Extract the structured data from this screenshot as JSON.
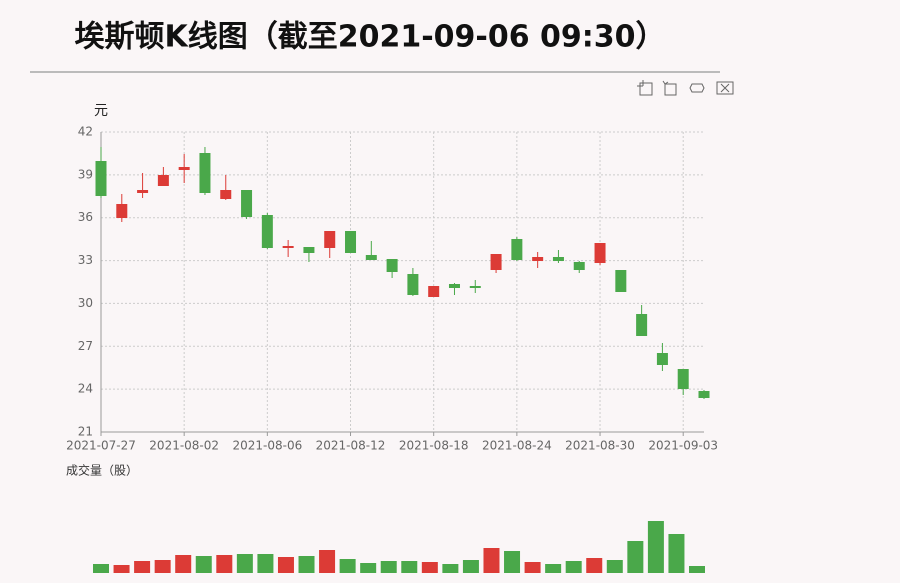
{
  "chart_data": {
    "type": "candlestick",
    "title": "埃斯顿K线图（截至2021-09-06 09:30）",
    "y_label": "元",
    "volume_label": "成交量（股）",
    "categories": [
      "2021-07-27",
      null,
      null,
      null,
      "2021-08-02",
      null,
      null,
      null,
      "2021-08-06",
      null,
      null,
      null,
      "2021-08-12",
      null,
      null,
      null,
      "2021-08-18",
      null,
      null,
      null,
      "2021-08-24",
      null,
      null,
      null,
      "2021-08-30",
      null,
      null,
      null,
      "2021-09-03",
      null
    ],
    "open": [
      39.97,
      35.98,
      37.73,
      38.22,
      39.34,
      40.53,
      37.31,
      37.94,
      36.19,
      33.88,
      33.95,
      33.88,
      35.07,
      33.39,
      33.11,
      32.06,
      30.45,
      31.36,
      31.22,
      32.34,
      34.51,
      32.97,
      33.25,
      32.9,
      32.83,
      32.34,
      29.26,
      26.53,
      25.41,
      23.87
    ],
    "high": [
      40.95,
      37.66,
      39.13,
      39.55,
      40.46,
      40.95,
      38.99,
      37.94,
      36.33,
      34.44,
      33.95,
      35.07,
      35.07,
      34.37,
      33.11,
      32.48,
      31.22,
      31.43,
      31.64,
      33.46,
      34.65,
      33.6,
      33.74,
      32.97,
      34.23,
      32.34,
      29.89,
      27.23,
      25.41,
      23.94
    ],
    "low": [
      37.38,
      35.7,
      37.38,
      38.22,
      38.43,
      37.59,
      37.24,
      35.91,
      33.81,
      33.25,
      32.9,
      33.18,
      33.53,
      33.04,
      31.78,
      30.52,
      30.45,
      30.59,
      30.73,
      32.13,
      32.97,
      32.48,
      32.83,
      32.13,
      32.69,
      30.8,
      27.72,
      25.27,
      23.59,
      23.31
    ],
    "close": [
      37.52,
      36.96,
      37.94,
      38.99,
      39.55,
      37.73,
      37.94,
      36.05,
      33.88,
      34.02,
      33.53,
      35.07,
      33.53,
      33.04,
      32.2,
      30.59,
      31.22,
      31.08,
      31.08,
      33.46,
      33.04,
      33.25,
      32.97,
      32.34,
      34.23,
      30.8,
      27.72,
      25.69,
      24.01,
      23.38
    ],
    "volume": [
      9000000,
      8000000,
      12000000,
      13000000,
      18000000,
      17000000,
      18000000,
      19000000,
      19000000,
      16000000,
      17000000,
      23000000,
      14000000,
      10000000,
      12000000,
      12000000,
      11000000,
      9000000,
      13000000,
      25000000,
      22000000,
      11000000,
      9000000,
      12000000,
      15000000,
      13000000,
      32000000,
      52000000,
      39000000,
      7000000
    ],
    "up_color": "#dc3b36",
    "down_color": "#4aa84a",
    "ylim": [
      21,
      42
    ],
    "yticks": [
      21,
      24,
      27,
      30,
      33,
      36,
      39,
      42
    ],
    "grid": true
  }
}
